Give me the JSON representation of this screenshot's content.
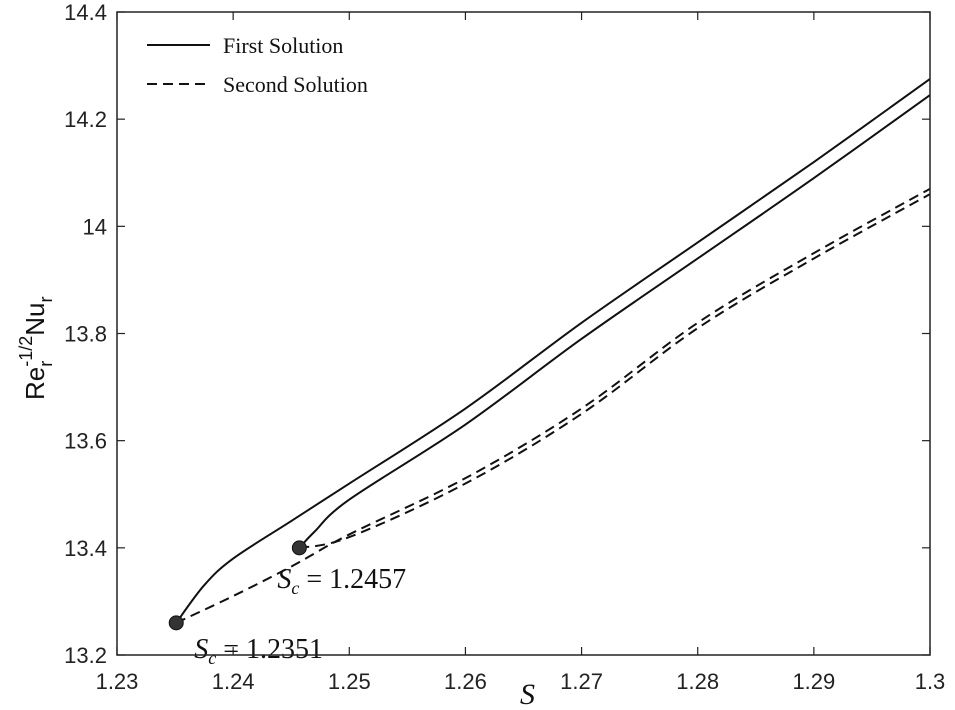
{
  "chart_data": {
    "type": "line",
    "xlim": [
      1.23,
      1.3
    ],
    "ylim": [
      13.2,
      14.4
    ],
    "xticks": [
      "1.23",
      "1.24",
      "1.25",
      "1.26",
      "1.27",
      "1.28",
      "1.29",
      "1.3"
    ],
    "yticks": [
      "13.2",
      "13.4",
      "13.6",
      "13.8",
      "14",
      "14.2",
      "14.4"
    ],
    "xlabel": "S",
    "ylabel": {
      "base": "Re",
      "sub1": "r",
      "sup": "-1/2",
      "mid": "Nu",
      "sub2": "r"
    },
    "legend": {
      "position": "top-left",
      "entries": [
        {
          "label": "First Solution",
          "style": "solid"
        },
        {
          "label": "Second Solution",
          "style": "dashed"
        }
      ]
    },
    "series": [
      {
        "name": "First Solution",
        "style": "solid",
        "x": [
          1.2351,
          1.2375,
          1.24,
          1.245,
          1.25,
          1.26,
          1.27,
          1.28,
          1.29,
          1.3
        ],
        "y": [
          13.26,
          13.33,
          13.38,
          13.45,
          13.52,
          13.66,
          13.82,
          13.97,
          14.12,
          14.275
        ]
      },
      {
        "name": "Second Solution",
        "style": "dashed",
        "x": [
          1.2351,
          1.24,
          1.245,
          1.25,
          1.26,
          1.27,
          1.28,
          1.29,
          1.3
        ],
        "y": [
          13.26,
          13.31,
          13.365,
          13.425,
          13.53,
          13.66,
          13.82,
          13.95,
          14.07
        ]
      },
      {
        "name": "First Solution",
        "style": "solid",
        "x": [
          1.2457,
          1.247,
          1.25,
          1.26,
          1.27,
          1.28,
          1.29,
          1.3
        ],
        "y": [
          13.4,
          13.43,
          13.49,
          13.63,
          13.79,
          13.94,
          14.09,
          14.245
        ]
      },
      {
        "name": "Second Solution",
        "style": "dashed",
        "x": [
          1.2457,
          1.25,
          1.26,
          1.27,
          1.28,
          1.29,
          1.3
        ],
        "y": [
          13.4,
          13.42,
          13.52,
          13.65,
          13.81,
          13.94,
          14.06
        ]
      }
    ],
    "critical_points": [
      {
        "x": 1.2351,
        "y": 13.26,
        "label_var": "S",
        "label_sub": "c",
        "label_rest": " = 1.2351"
      },
      {
        "x": 1.2457,
        "y": 13.4,
        "label_var": "S",
        "label_sub": "c",
        "label_rest": " = 1.2457"
      }
    ]
  }
}
